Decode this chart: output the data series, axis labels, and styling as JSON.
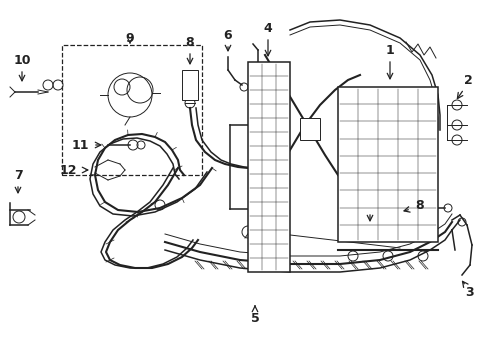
{
  "bg_color": "#ffffff",
  "line_color": "#222222",
  "fig_width": 4.9,
  "fig_height": 3.6,
  "dpi": 100,
  "xlim": [
    0,
    490
  ],
  "ylim": [
    0,
    360
  ]
}
